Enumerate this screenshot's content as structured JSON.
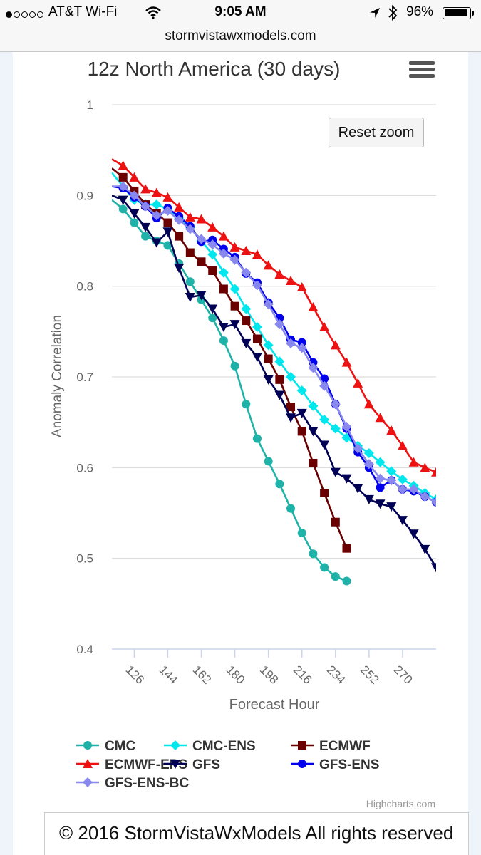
{
  "status_bar": {
    "carrier": "AT&T Wi-Fi",
    "time": "9:05 AM",
    "battery": "96%",
    "battery_level": 0.96,
    "signal_bars_filled": 1,
    "signal_bars_total": 5,
    "icons": [
      "wifi-icon",
      "location-arrow-icon",
      "bluetooth-icon",
      "battery-icon"
    ]
  },
  "browser": {
    "url": "stormvistawxmodels.com"
  },
  "chart_controls": {
    "reset_zoom": "Reset zoom",
    "menu_icon": "hamburger-menu-icon"
  },
  "chart_data": {
    "type": "line",
    "title": "12z North America (30 days)",
    "xlabel": "Forecast Hour",
    "ylabel": "Anomaly Correlation",
    "xlim": [
      114,
      288
    ],
    "ylim": [
      0.4,
      1.0
    ],
    "yticks": [
      0.4,
      0.5,
      0.6,
      0.7,
      0.8,
      0.9,
      1
    ],
    "ytick_labels": [
      "0.4",
      "0.5",
      "0.6",
      "0.7",
      "0.8",
      "0.9",
      "1"
    ],
    "xticks": [
      126,
      144,
      162,
      180,
      198,
      216,
      234,
      252,
      270
    ],
    "grid": true,
    "legend_position": "bottom",
    "credits": "Highcharts.com",
    "series": [
      {
        "name": "CMC",
        "color": "#1fb2a8",
        "marker": "circle",
        "x": [
          114,
          120,
          126,
          132,
          138,
          144,
          150,
          156,
          162,
          168,
          174,
          180,
          186,
          192,
          198,
          204,
          210,
          216,
          222,
          228,
          234,
          240
        ],
        "y": [
          0.895,
          0.885,
          0.87,
          0.855,
          0.85,
          0.845,
          0.825,
          0.805,
          0.785,
          0.765,
          0.74,
          0.712,
          0.67,
          0.632,
          0.607,
          0.582,
          0.555,
          0.528,
          0.505,
          0.49,
          0.48,
          0.475
        ]
      },
      {
        "name": "CMC-ENS",
        "color": "#00e8ee",
        "marker": "diamond",
        "x": [
          114,
          120,
          126,
          132,
          138,
          144,
          150,
          156,
          162,
          168,
          174,
          180,
          186,
          192,
          198,
          204,
          210,
          216,
          222,
          228,
          234,
          240,
          246,
          252,
          258,
          264,
          270,
          276,
          282,
          288
        ],
        "y": [
          0.925,
          0.91,
          0.895,
          0.89,
          0.89,
          0.885,
          0.875,
          0.865,
          0.85,
          0.835,
          0.815,
          0.797,
          0.775,
          0.755,
          0.735,
          0.717,
          0.7,
          0.685,
          0.668,
          0.653,
          0.643,
          0.633,
          0.624,
          0.616,
          0.606,
          0.596,
          0.587,
          0.58,
          0.572,
          0.565
        ]
      },
      {
        "name": "ECMWF",
        "color": "#6b0000",
        "marker": "square",
        "x": [
          114,
          120,
          126,
          132,
          138,
          144,
          150,
          156,
          162,
          168,
          174,
          180,
          186,
          192,
          198,
          204,
          210,
          216,
          222,
          228,
          234,
          240
        ],
        "y": [
          0.93,
          0.92,
          0.905,
          0.89,
          0.88,
          0.87,
          0.855,
          0.837,
          0.827,
          0.817,
          0.797,
          0.778,
          0.762,
          0.742,
          0.72,
          0.697,
          0.667,
          0.64,
          0.605,
          0.572,
          0.54,
          0.511
        ]
      },
      {
        "name": "ECMWF-EPS",
        "color": "#ee1111",
        "marker": "triangle",
        "x": [
          114,
          120,
          126,
          132,
          138,
          144,
          150,
          156,
          162,
          168,
          174,
          180,
          186,
          192,
          198,
          204,
          210,
          216,
          222,
          228,
          234,
          240,
          246,
          252,
          258,
          264,
          270,
          276,
          282,
          288
        ],
        "y": [
          0.94,
          0.933,
          0.92,
          0.907,
          0.903,
          0.898,
          0.887,
          0.876,
          0.874,
          0.865,
          0.855,
          0.843,
          0.839,
          0.835,
          0.823,
          0.813,
          0.806,
          0.799,
          0.777,
          0.755,
          0.735,
          0.716,
          0.693,
          0.67,
          0.655,
          0.641,
          0.624,
          0.606,
          0.6,
          0.595
        ]
      },
      {
        "name": "GFS",
        "color": "#000055",
        "marker": "triangle-down",
        "x": [
          114,
          120,
          126,
          132,
          138,
          144,
          150,
          156,
          162,
          168,
          174,
          180,
          186,
          192,
          198,
          204,
          210,
          216,
          222,
          228,
          234,
          240,
          246,
          252,
          258,
          264,
          270,
          276,
          282,
          288
        ],
        "y": [
          0.9,
          0.895,
          0.88,
          0.865,
          0.848,
          0.86,
          0.82,
          0.788,
          0.79,
          0.775,
          0.755,
          0.758,
          0.737,
          0.722,
          0.697,
          0.68,
          0.655,
          0.66,
          0.64,
          0.625,
          0.595,
          0.588,
          0.577,
          0.565,
          0.56,
          0.557,
          0.542,
          0.527,
          0.51,
          0.49
        ]
      },
      {
        "name": "GFS-ENS",
        "color": "#0000ee",
        "marker": "circle",
        "x": [
          114,
          120,
          126,
          132,
          138,
          144,
          150,
          156,
          162,
          168,
          174,
          180,
          186,
          192,
          198,
          204,
          210,
          216,
          222,
          228,
          234,
          240,
          246,
          252,
          258,
          264,
          270,
          276,
          282,
          288
        ],
        "y": [
          0.91,
          0.908,
          0.898,
          0.888,
          0.875,
          0.886,
          0.877,
          0.866,
          0.849,
          0.851,
          0.841,
          0.832,
          0.814,
          0.804,
          0.782,
          0.765,
          0.741,
          0.738,
          0.716,
          0.698,
          0.67,
          0.643,
          0.617,
          0.6,
          0.578,
          0.586,
          0.576,
          0.574,
          0.568,
          0.562
        ]
      },
      {
        "name": "GFS-ENS-BC",
        "color": "#8888ee",
        "marker": "diamond",
        "x": [
          114,
          120,
          126,
          132,
          138,
          144,
          150,
          156,
          162,
          168,
          174,
          180,
          186,
          192,
          198,
          204,
          210,
          216,
          222,
          228,
          234,
          240,
          246,
          252,
          258,
          264,
          270,
          276,
          282,
          288
        ],
        "y": [
          0.91,
          0.91,
          0.9,
          0.888,
          0.878,
          0.883,
          0.873,
          0.863,
          0.852,
          0.846,
          0.836,
          0.829,
          0.815,
          0.801,
          0.78,
          0.758,
          0.737,
          0.732,
          0.71,
          0.69,
          0.67,
          0.645,
          0.621,
          0.604,
          0.588,
          0.586,
          0.576,
          0.576,
          0.568,
          0.562
        ]
      }
    ]
  },
  "footer": {
    "text": "© 2016 StormVistaWxModels All rights reserved"
  }
}
